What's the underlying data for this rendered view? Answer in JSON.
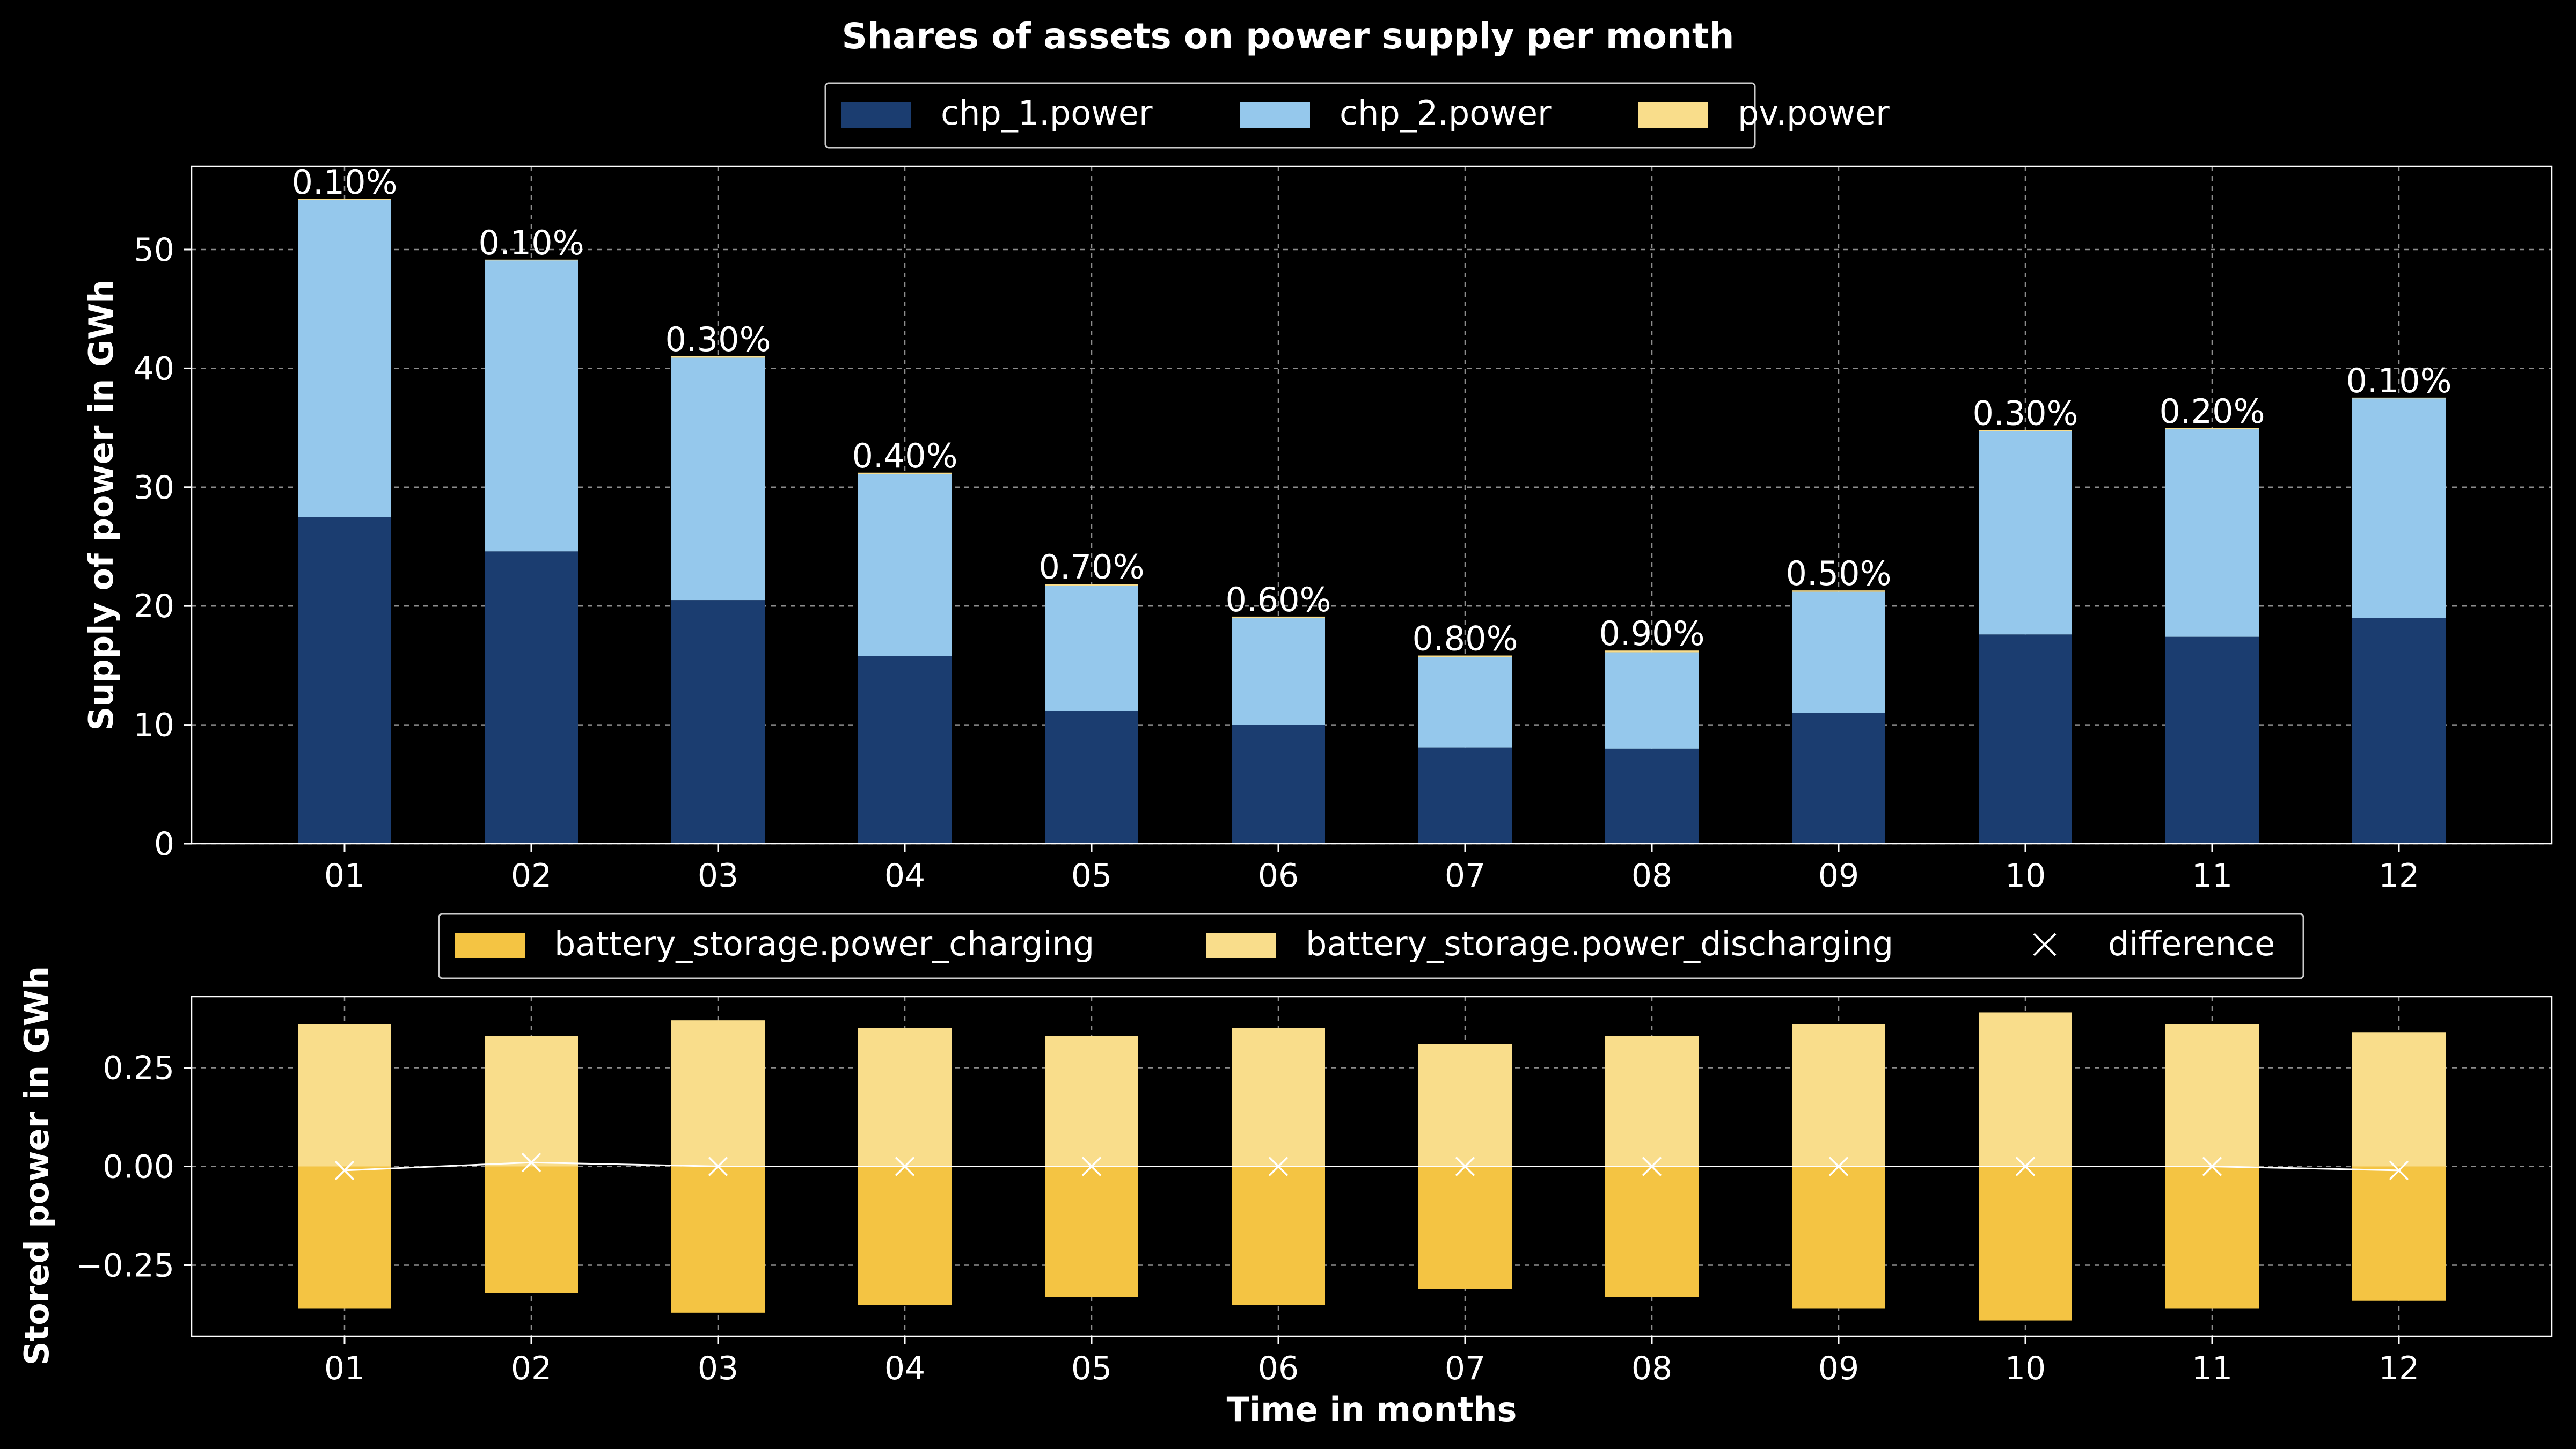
{
  "chart_data": [
    {
      "type": "bar",
      "stacked": true,
      "title": "Shares of assets on power supply per month",
      "ylabel": "Supply of power in GWh",
      "xlabel": "",
      "ylim": [
        0,
        57
      ],
      "yticks": [
        0,
        10,
        20,
        30,
        40,
        50
      ],
      "grid": true,
      "legend_position": "top-center",
      "categories": [
        "01",
        "02",
        "03",
        "04",
        "05",
        "06",
        "07",
        "08",
        "09",
        "10",
        "11",
        "12"
      ],
      "series": [
        {
          "name": "chp_1.power",
          "color": "#1b3d70",
          "values": [
            27.5,
            24.6,
            20.5,
            15.8,
            11.2,
            10.0,
            8.1,
            8.0,
            11.0,
            17.6,
            17.4,
            19.0
          ]
        },
        {
          "name": "chp_2.power",
          "color": "#95c8ec",
          "values": [
            26.7,
            24.5,
            20.4,
            15.3,
            10.5,
            9.0,
            7.6,
            8.1,
            10.2,
            17.1,
            17.5,
            18.5
          ]
        },
        {
          "name": "pv.power",
          "color": "#f9dd8b",
          "values": [
            0.05,
            0.05,
            0.12,
            0.12,
            0.15,
            0.11,
            0.13,
            0.15,
            0.11,
            0.1,
            0.07,
            0.04
          ]
        }
      ],
      "bar_labels": [
        "0.10%",
        "0.10%",
        "0.30%",
        "0.40%",
        "0.70%",
        "0.60%",
        "0.80%",
        "0.90%",
        "0.50%",
        "0.30%",
        "0.20%",
        "0.10%"
      ]
    },
    {
      "type": "bar",
      "stacked": true,
      "title": "",
      "ylabel": "Stored power in GWh",
      "xlabel": "Time in months",
      "ylim": [
        -0.43,
        0.43
      ],
      "yticks": [
        -0.25,
        0.0,
        0.25
      ],
      "ytick_labels": [
        "−0.25",
        "0.00",
        "0.25"
      ],
      "grid": true,
      "legend_position": "top-center",
      "categories": [
        "01",
        "02",
        "03",
        "04",
        "05",
        "06",
        "07",
        "08",
        "09",
        "10",
        "11",
        "12"
      ],
      "series": [
        {
          "name": "battery_storage.power_charging",
          "color": "#f4c443",
          "values": [
            -0.36,
            -0.32,
            -0.37,
            -0.35,
            -0.33,
            -0.35,
            -0.31,
            -0.33,
            -0.36,
            -0.39,
            -0.36,
            -0.34
          ]
        },
        {
          "name": "battery_storage.power_discharging",
          "color": "#f9dd8b",
          "values": [
            0.36,
            0.33,
            0.37,
            0.35,
            0.33,
            0.35,
            0.31,
            0.33,
            0.36,
            0.39,
            0.36,
            0.34
          ]
        }
      ],
      "line_series": {
        "name": "difference",
        "marker": "x",
        "color": "#ffffff",
        "values": [
          -0.01,
          0.01,
          0.0,
          0.0,
          0.0,
          0.0,
          0.0,
          0.0,
          0.0,
          0.0,
          0.0,
          -0.01
        ]
      }
    }
  ]
}
